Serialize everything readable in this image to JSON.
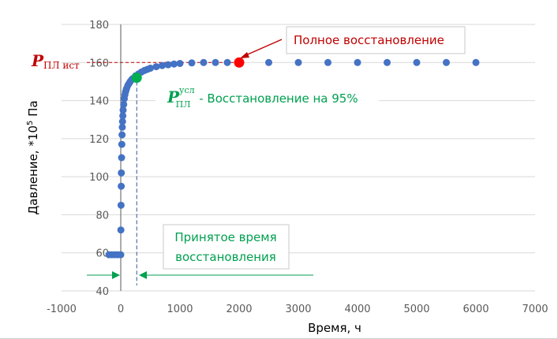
{
  "chart_data": {
    "type": "scatter",
    "xlabel": "Время, ч",
    "ylabel_main": "Давление, *10",
    "ylabel_sup": "5",
    "ylabel_tail": " Па",
    "xlim": [
      -1000,
      7000
    ],
    "ylim": [
      40,
      180
    ],
    "x_ticks": [
      -1000,
      0,
      1000,
      2000,
      3000,
      4000,
      5000,
      6000,
      7000
    ],
    "y_ticks": [
      40,
      60,
      80,
      100,
      120,
      140,
      160,
      180
    ],
    "grid": "horizontal",
    "series": [
      {
        "color": "#4472c4",
        "x": [
          -200,
          -150,
          -100,
          -50,
          0,
          2,
          5,
          8,
          10,
          14,
          18,
          22,
          26,
          30,
          35,
          40,
          50,
          60,
          70,
          80,
          90,
          100,
          120,
          140,
          160,
          180,
          200,
          250,
          300,
          350,
          400,
          450,
          500,
          600,
          700,
          800,
          900,
          1000,
          1200,
          1400,
          1600,
          1800,
          2000,
          2500,
          3000,
          3500,
          4000,
          4500,
          5000,
          5500,
          6000
        ],
        "y": [
          59,
          59,
          59,
          59,
          59,
          72,
          85,
          95,
          102,
          110,
          117,
          122,
          126,
          129,
          132,
          135,
          138,
          141,
          143,
          144.5,
          145.5,
          146.5,
          148,
          149,
          150,
          150.8,
          151.5,
          153,
          154,
          155,
          155.8,
          156.4,
          157,
          157.8,
          158.4,
          158.8,
          159.2,
          159.5,
          159.8,
          160,
          160,
          160,
          160,
          160,
          160,
          160,
          160,
          160,
          160,
          160,
          160
        ]
      }
    ],
    "highlight_points": [
      {
        "x": 2000,
        "y": 160,
        "color": "#ff0000"
      },
      {
        "x": 270,
        "y": 152,
        "color": "#00b050"
      }
    ],
    "reference_lines": {
      "h_red_y": 160,
      "v_red_x": 2000,
      "v_blue_x": [
        0,
        270
      ]
    },
    "annotations": {
      "p_ist_label": "P",
      "p_ist_sub": "ПЛ ист",
      "full_recovery": "Полное восстановление",
      "p_usl_label": "P",
      "p_usl_sup": "усл",
      "p_usl_sub": "ПЛ",
      "p_usl_text": " - Восстановление на 95%",
      "accepted_time_line1": "Принятое время",
      "accepted_time_line2": "восстановления"
    },
    "colors": {
      "series": "#4472c4",
      "red": "#c00000",
      "green": "#00a050",
      "grid": "#d9d9d9"
    }
  }
}
